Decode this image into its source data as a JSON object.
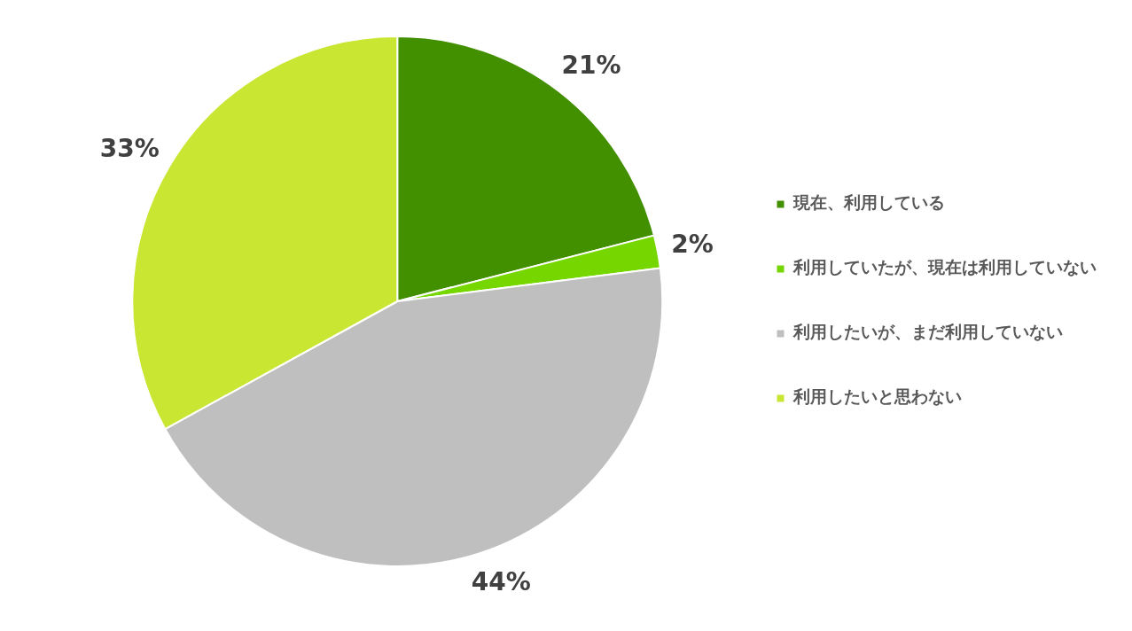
{
  "chart_data": {
    "type": "pie",
    "categories": [
      "現在、利用している",
      "利用していたが、現在は利用していない",
      "利用したいが、まだ利用していない",
      "利用したいと思わない"
    ],
    "values": [
      21,
      2,
      44,
      33
    ],
    "colors": [
      "#428f00",
      "#76d600",
      "#bfbfbf",
      "#c8e632"
    ],
    "value_labels": [
      "21%",
      "2%",
      "44%",
      "33%"
    ],
    "legend": "right"
  }
}
